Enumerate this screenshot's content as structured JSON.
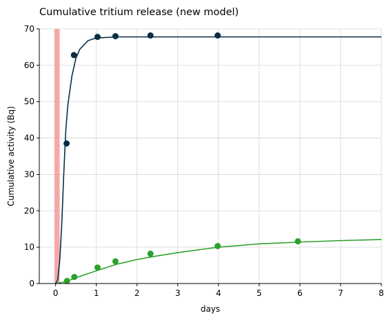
{
  "chart_data": {
    "type": "line",
    "title": "Cumulative tritium release (new model)",
    "xlabel": "days",
    "ylabel": "Cumulative activity (Bq)",
    "xlim": [
      -0.4,
      8
    ],
    "ylim": [
      0,
      70
    ],
    "xticks": [
      0,
      1,
      2,
      3,
      4,
      5,
      6,
      7,
      8
    ],
    "yticks": [
      0,
      10,
      20,
      30,
      40,
      50,
      60,
      70
    ],
    "grid": true,
    "span": {
      "x": [
        -0.03,
        0.1
      ],
      "color": "#f4a9a8"
    },
    "series": [
      {
        "mode": "line",
        "color": "#0a2e43",
        "x": [
          0,
          0.05,
          0.1,
          0.15,
          0.2,
          0.25,
          0.3,
          0.4,
          0.5,
          0.6,
          0.8,
          1.0,
          1.5,
          2,
          8
        ],
        "values": [
          0,
          1,
          6,
          16,
          30,
          42,
          49,
          57,
          62,
          64.5,
          66.8,
          67.5,
          67.8,
          67.8,
          67.8
        ]
      },
      {
        "mode": "markers",
        "color": "#0a2e43",
        "x": [
          0.27,
          0.45,
          1.03,
          1.47,
          2.33,
          3.98
        ],
        "values": [
          38.5,
          62.8,
          67.8,
          68,
          68.2,
          68.2
        ]
      },
      {
        "mode": "line",
        "color": "#2ca02c",
        "x": [
          0,
          0.25,
          0.5,
          1,
          1.5,
          2,
          2.5,
          3,
          4,
          5,
          6,
          7,
          8
        ],
        "values": [
          0,
          0.5,
          1.6,
          3.5,
          5.3,
          6.6,
          7.6,
          8.5,
          10,
          10.9,
          11.4,
          11.8,
          12.1
        ]
      },
      {
        "mode": "markers",
        "color": "#2ca02c",
        "x": [
          0.28,
          0.46,
          1.03,
          1.47,
          2.33,
          3.98,
          5.95
        ],
        "values": [
          0.7,
          1.8,
          4.4,
          6.1,
          8.2,
          10.3,
          11.6
        ]
      }
    ]
  }
}
